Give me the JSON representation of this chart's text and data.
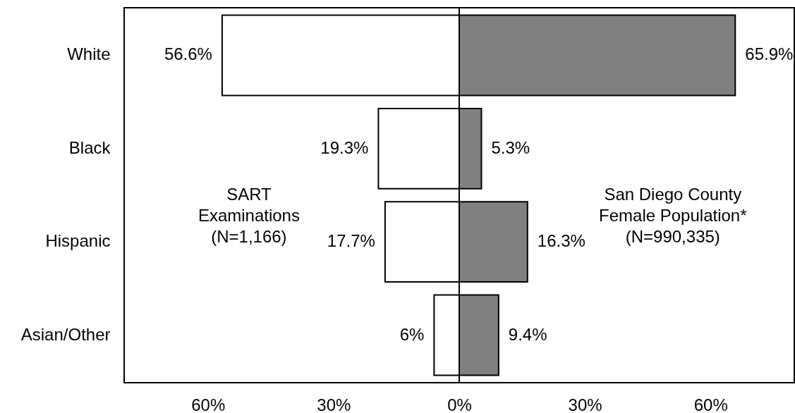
{
  "chart_data": [
    {
      "type": "bar",
      "orientation": "horizontal",
      "categories": [
        "White",
        "Black",
        "Hispanic",
        "Asian/Other"
      ],
      "series": [
        {
          "name": "SART\nExaminations\n(N=1,166)",
          "color": "#ffffff",
          "values": [
            56.6,
            19.3,
            17.7,
            6
          ],
          "value_labels": [
            "56.6%",
            "19.3%",
            "17.7%",
            "6%"
          ]
        }
      ],
      "xlim": [
        80,
        0
      ],
      "xticks": [
        {
          "value": 60,
          "label": "60%"
        },
        {
          "value": 30,
          "label": "30%"
        },
        {
          "value": 0,
          "label": "0%"
        }
      ],
      "grid": false
    },
    {
      "type": "bar",
      "orientation": "horizontal",
      "categories": [
        "White",
        "Black",
        "Hispanic",
        "Asian/Other"
      ],
      "series": [
        {
          "name": "San Diego County\nFemale Population*\n(N=990,335)",
          "color": "#808080",
          "values": [
            65.9,
            5.3,
            16.3,
            9.4
          ],
          "value_labels": [
            "65.9%",
            "5.3%",
            "16.3%",
            "9.4%"
          ]
        }
      ],
      "xlim": [
        0,
        80
      ],
      "xticks": [
        {
          "value": 30,
          "label": "30%"
        },
        {
          "value": 60,
          "label": "60%"
        }
      ],
      "grid": false,
      "tick_labels": "x"
    }
  ]
}
